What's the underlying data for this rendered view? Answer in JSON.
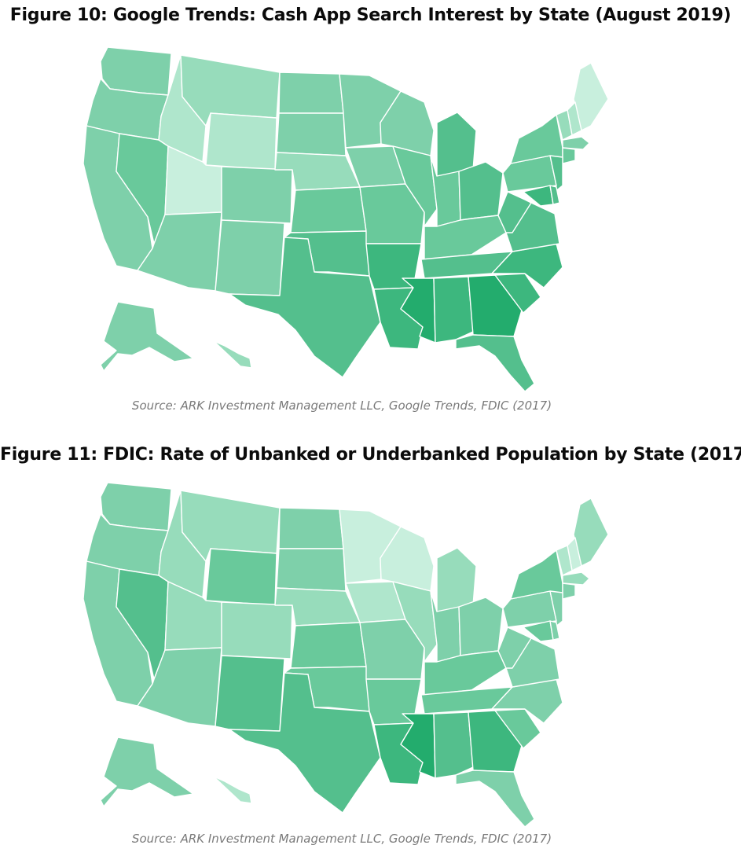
{
  "figures": [
    {
      "title": "Figure 10: Google Trends: Cash App Search Interest by State (August 2019)",
      "source": "Source: ARK Investment Management LLC, Google Trends, FDIC (2017)",
      "map_data": {
        "type": "choropleth",
        "region": "United States",
        "values": {
          "WA": 3,
          "OR": 3,
          "CA": 3,
          "NV": 4,
          "ID": 1,
          "MT": 2,
          "WY": 1,
          "UT": 0,
          "AZ": 3,
          "CO": 3,
          "NM": 3,
          "ND": 3,
          "SD": 3,
          "NE": 2,
          "KS": 4,
          "OK": 5,
          "TX": 5,
          "MN": 3,
          "IA": 3,
          "MO": 4,
          "AR": 6,
          "LA": 6,
          "WI": 3,
          "IL": 4,
          "MI": 5,
          "IN": 4,
          "OH": 5,
          "KY": 4,
          "TN": 5,
          "MS": 7,
          "AL": 6,
          "GA": 7,
          "FL": 5,
          "SC": 6,
          "NC": 6,
          "VA": 5,
          "WV": 5,
          "PA": 4,
          "NY": 4,
          "ME": 0,
          "NH": 1,
          "VT": 2,
          "MA": 3,
          "CT": 4,
          "NJ": 5,
          "MD": 6,
          "DE": 5,
          "AK": 3,
          "HI": 2
        }
      }
    },
    {
      "title": "Figure 11: FDIC: Rate of Unbanked or Underbanked Population by State (2017)",
      "source": "Source: ARK Investment Management LLC, Google Trends, FDIC (2017)",
      "map_data": {
        "type": "choropleth",
        "region": "United States",
        "values": {
          "WA": 3,
          "OR": 3,
          "CA": 3,
          "NV": 5,
          "ID": 2,
          "MT": 2,
          "WY": 4,
          "UT": 2,
          "AZ": 3,
          "CO": 2,
          "NM": 5,
          "ND": 3,
          "SD": 3,
          "NE": 2,
          "KS": 4,
          "OK": 4,
          "TX": 5,
          "MN": 0,
          "IA": 1,
          "MO": 3,
          "AR": 4,
          "LA": 6,
          "WI": 0,
          "IL": 2,
          "MI": 2,
          "IN": 3,
          "OH": 3,
          "KY": 4,
          "TN": 4,
          "MS": 7,
          "AL": 5,
          "GA": 6,
          "FL": 3,
          "SC": 4,
          "NC": 3,
          "VA": 3,
          "WV": 3,
          "PA": 3,
          "NY": 4,
          "ME": 2,
          "NH": 0,
          "VT": 1,
          "MA": 2,
          "CT": 3,
          "NJ": 3,
          "MD": 4,
          "DE": 3,
          "AK": 3,
          "HI": 1
        }
      }
    }
  ],
  "color_scale": [
    "#c8efdd",
    "#afe6cc",
    "#97dcbb",
    "#7ed0aa",
    "#69c99b",
    "#54bf8d",
    "#3db77e",
    "#23ac6d"
  ]
}
